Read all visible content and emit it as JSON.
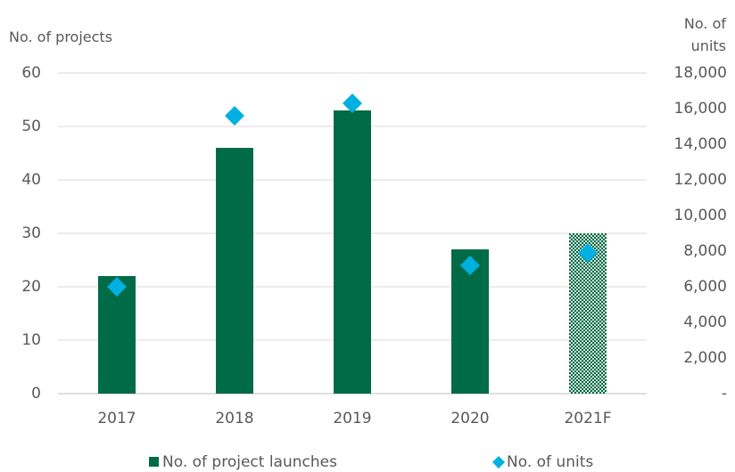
{
  "chart_data": {
    "type": "bar",
    "y_label": "No. of projects",
    "y2_label": "No. of units",
    "categories": [
      "2017",
      "2018",
      "2019",
      "2020",
      "2021F"
    ],
    "ylim": [
      0,
      60
    ],
    "yticks": [
      0,
      10,
      20,
      30,
      40,
      50,
      60
    ],
    "y2lim": [
      0,
      18000
    ],
    "y2ticks": [
      {
        "value": 0,
        "label": "-"
      },
      {
        "value": 2000,
        "label": "2,000"
      },
      {
        "value": 4000,
        "label": "4,000"
      },
      {
        "value": 6000,
        "label": "6,000"
      },
      {
        "value": 8000,
        "label": "8,000"
      },
      {
        "value": 10000,
        "label": "10,000"
      },
      {
        "value": 12000,
        "label": "12,000"
      },
      {
        "value": 14000,
        "label": "14,000"
      },
      {
        "value": 16000,
        "label": "16,000"
      },
      {
        "value": 18000,
        "label": "18,000"
      }
    ],
    "grid": true,
    "series": [
      {
        "name": "No. of project launches",
        "type": "bar",
        "color": "#006b47",
        "values": [
          22,
          46,
          53,
          27,
          30
        ],
        "patterned": [
          false,
          false,
          false,
          false,
          true
        ]
      },
      {
        "name": "No. of units",
        "type": "diamond",
        "axis": "y2",
        "color": "#00b0e0",
        "values": [
          6000,
          15600,
          16300,
          7200,
          7900
        ]
      }
    ]
  }
}
